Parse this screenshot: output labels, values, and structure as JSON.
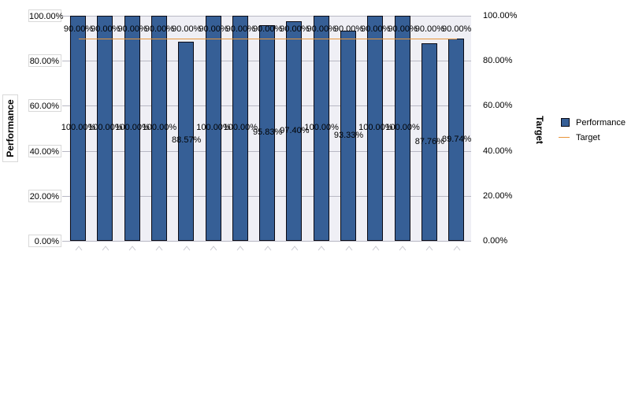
{
  "chart_data": {
    "type": "bar",
    "title": "",
    "xlabel": "",
    "ylabel": "Performance",
    "y2label": "Target",
    "ylim": [
      0,
      100
    ],
    "y2lim": [
      0,
      100
    ],
    "categories": [
      "",
      "",
      "",
      "",
      "",
      "",
      "",
      "",
      "",
      "",
      "",
      "",
      "",
      "",
      ""
    ],
    "series": [
      {
        "name": "Performance",
        "type": "bar",
        "color": "#365f96",
        "values": [
          100.0,
          100.0,
          100.0,
          100.0,
          88.57,
          100.0,
          100.0,
          95.83,
          97.4,
          100.0,
          93.33,
          100.0,
          100.0,
          87.76,
          89.74
        ],
        "labels": [
          "100.00%",
          "100.00%",
          "100.00%",
          "100.00%",
          "88.57%",
          "100.00%",
          "100.00%",
          "95.83%",
          "97.40%",
          "100.00%",
          "93.33%",
          "100.00%",
          "100.00%",
          "87.76%",
          "89.74%"
        ]
      },
      {
        "name": "Target",
        "type": "line",
        "color": "#e8953a",
        "values": [
          90.0,
          90.0,
          90.0,
          90.0,
          90.0,
          90.0,
          90.0,
          90.0,
          90.0,
          90.0,
          90.0,
          90.0,
          90.0,
          90.0,
          90.0
        ],
        "labels": [
          "90.00%",
          "90.00%",
          "90.00%",
          "90.00%",
          "90.00%",
          "90.00%",
          "90.00%",
          "90.00%",
          "90.00%",
          "90.00%",
          "90.00%",
          "90.00%",
          "90.00%",
          "90.00%",
          "90.00%"
        ]
      }
    ],
    "yticks_left": [
      "100.00%",
      "80.00%",
      "60.00%",
      "40.00%",
      "20.00%",
      "0.00%"
    ],
    "yticks_right": [
      "100.00%",
      "80.00%",
      "60.00%",
      "40.00%",
      "20.00%",
      "0.00%"
    ],
    "grid": true,
    "legend": {
      "position": "right",
      "entries": [
        "Performance",
        "Target"
      ]
    }
  },
  "axes": {
    "left_title": "Performance",
    "right_title": "Target"
  },
  "legend": {
    "items": [
      {
        "label": "Performance"
      },
      {
        "label": "Target"
      }
    ]
  }
}
